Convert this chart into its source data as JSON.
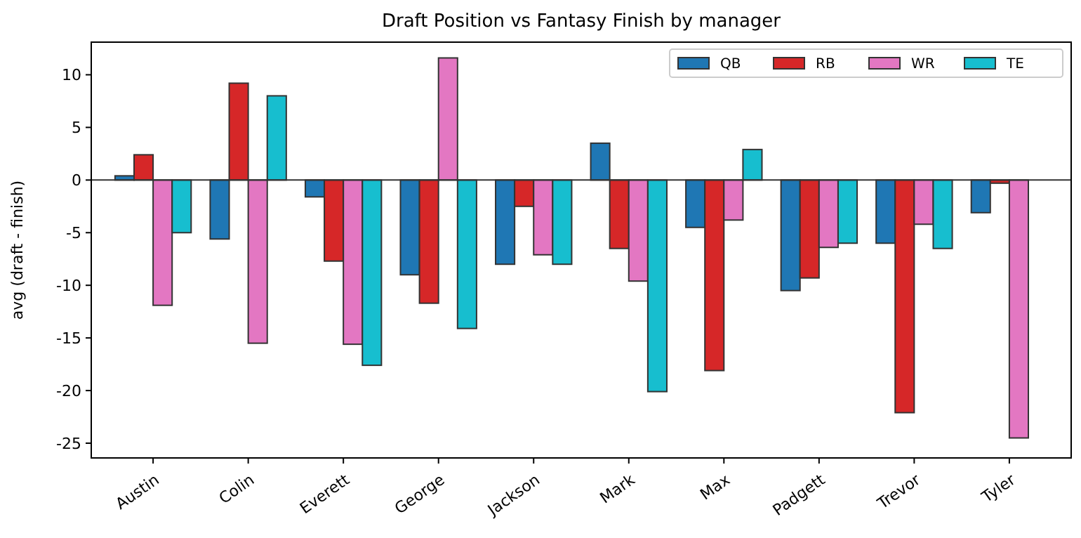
{
  "chart_data": {
    "type": "bar",
    "title": "Draft Position vs Fantasy Finish by manager",
    "ylabel": "avg (draft - finish)",
    "categories": [
      "Austin",
      "Colin",
      "Everett",
      "George",
      "Jackson",
      "Mark",
      "Max",
      "Padgett",
      "Trevor",
      "Tyler"
    ],
    "series": [
      {
        "name": "QB",
        "color": "#1f77b4",
        "values": [
          0.4,
          -5.6,
          -1.6,
          -9,
          -8,
          3.5,
          -4.5,
          -10.5,
          -6,
          -3.1
        ]
      },
      {
        "name": "RB",
        "color": "#d62728",
        "values": [
          2.4,
          9.2,
          -7.7,
          -11.7,
          -2.5,
          -6.5,
          -18.1,
          -9.3,
          -22.1,
          -0.3
        ]
      },
      {
        "name": "WR",
        "color": "#e377c2",
        "values": [
          -11.9,
          -15.5,
          -15.6,
          11.6,
          -7.1,
          -9.6,
          -3.8,
          -6.4,
          -4.2,
          -24.5
        ]
      },
      {
        "name": "TE",
        "color": "#17becf",
        "values": [
          -5,
          8,
          -17.6,
          -14.1,
          -8,
          -20.1,
          2.9,
          -6,
          -6.5,
          0
        ]
      }
    ],
    "ylim": [
      -26.4,
      13.1
    ],
    "yticks": [
      -25,
      -20,
      -15,
      -10,
      -5,
      0,
      5,
      10
    ],
    "ref_lines": [
      {
        "axis": "y",
        "value": 0,
        "color": "#333333"
      }
    ],
    "legend": "top right",
    "grid": false
  }
}
